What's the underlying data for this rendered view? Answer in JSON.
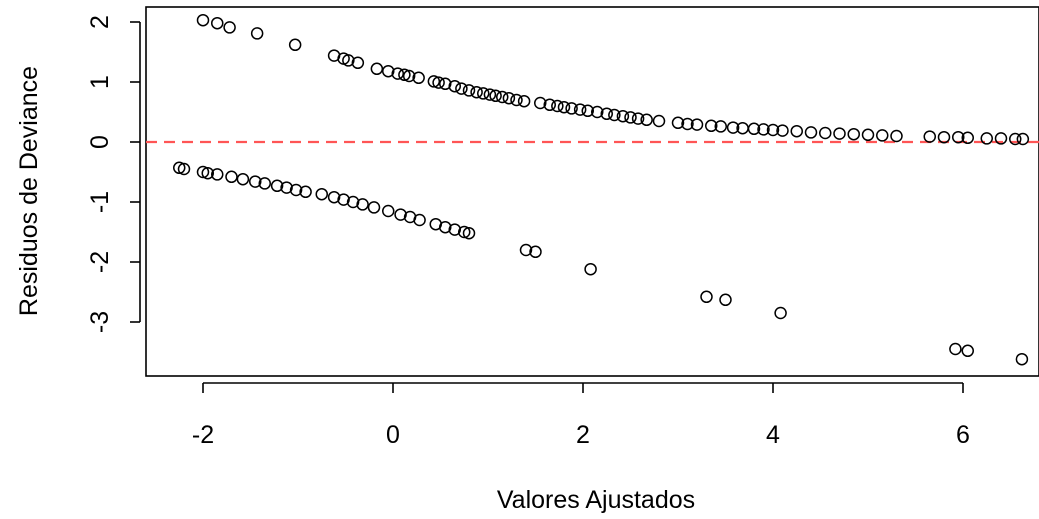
{
  "chart_data": {
    "type": "scatter",
    "title": "",
    "xlabel": "Valores Ajustados",
    "ylabel": "Residuos de Deviance",
    "xlim": [
      -2.6,
      6.8
    ],
    "ylim": [
      -3.9,
      2.25
    ],
    "x_ticks": [
      -2,
      0,
      2,
      4,
      6
    ],
    "y_ticks": [
      -3,
      -2,
      -1,
      0,
      1,
      2
    ],
    "x_tick_labels": [
      "-2",
      "0",
      "2",
      "4",
      "6"
    ],
    "y_tick_labels": [
      "-3",
      "-2",
      "-1",
      "0",
      "1",
      "2"
    ],
    "grid": false,
    "legend": "none",
    "reference_line": {
      "y": 0,
      "style": "dashed",
      "color": "#ff5555"
    },
    "marker": {
      "shape": "open-circle",
      "color": "#000000"
    },
    "series": [
      {
        "points": [
          [
            -2.0,
            2.03
          ],
          [
            -1.85,
            1.98
          ],
          [
            -1.72,
            1.91
          ],
          [
            -1.43,
            1.81
          ],
          [
            -1.03,
            1.62
          ],
          [
            -0.62,
            1.44
          ],
          [
            -0.52,
            1.39
          ],
          [
            -0.47,
            1.36
          ],
          [
            -0.37,
            1.32
          ],
          [
            -0.17,
            1.22
          ],
          [
            -0.05,
            1.18
          ],
          [
            0.05,
            1.14
          ],
          [
            0.12,
            1.12
          ],
          [
            0.17,
            1.1
          ],
          [
            0.27,
            1.07
          ],
          [
            0.43,
            1.01
          ],
          [
            0.48,
            0.99
          ],
          [
            0.55,
            0.97
          ],
          [
            0.65,
            0.93
          ],
          [
            0.72,
            0.89
          ],
          [
            0.8,
            0.86
          ],
          [
            0.88,
            0.83
          ],
          [
            0.95,
            0.81
          ],
          [
            1.02,
            0.79
          ],
          [
            1.08,
            0.77
          ],
          [
            1.15,
            0.75
          ],
          [
            1.22,
            0.73
          ],
          [
            1.3,
            0.7
          ],
          [
            1.38,
            0.68
          ],
          [
            1.55,
            0.65
          ],
          [
            1.65,
            0.62
          ],
          [
            1.73,
            0.6
          ],
          [
            1.8,
            0.58
          ],
          [
            1.88,
            0.56
          ],
          [
            1.97,
            0.54
          ],
          [
            2.05,
            0.52
          ],
          [
            2.15,
            0.5
          ],
          [
            2.25,
            0.47
          ],
          [
            2.33,
            0.45
          ],
          [
            2.42,
            0.43
          ],
          [
            2.5,
            0.41
          ],
          [
            2.58,
            0.39
          ],
          [
            2.67,
            0.37
          ],
          [
            2.8,
            0.35
          ],
          [
            3.0,
            0.32
          ],
          [
            3.1,
            0.3
          ],
          [
            3.2,
            0.29
          ],
          [
            3.35,
            0.27
          ],
          [
            3.45,
            0.26
          ],
          [
            3.58,
            0.24
          ],
          [
            3.68,
            0.23
          ],
          [
            3.8,
            0.22
          ],
          [
            3.9,
            0.21
          ],
          [
            4.0,
            0.2
          ],
          [
            4.1,
            0.19
          ],
          [
            4.25,
            0.18
          ],
          [
            4.4,
            0.16
          ],
          [
            4.55,
            0.15
          ],
          [
            4.7,
            0.14
          ],
          [
            4.85,
            0.13
          ],
          [
            5.0,
            0.12
          ],
          [
            5.15,
            0.11
          ],
          [
            5.3,
            0.1
          ],
          [
            5.65,
            0.09
          ],
          [
            5.8,
            0.08
          ],
          [
            5.95,
            0.08
          ],
          [
            6.05,
            0.07
          ],
          [
            6.25,
            0.06
          ],
          [
            6.4,
            0.06
          ],
          [
            6.55,
            0.05
          ],
          [
            6.63,
            0.05
          ],
          [
            -2.25,
            -0.43
          ],
          [
            -2.2,
            -0.45
          ],
          [
            -2.0,
            -0.5
          ],
          [
            -1.95,
            -0.52
          ],
          [
            -1.85,
            -0.54
          ],
          [
            -1.7,
            -0.58
          ],
          [
            -1.58,
            -0.62
          ],
          [
            -1.45,
            -0.66
          ],
          [
            -1.35,
            -0.69
          ],
          [
            -1.22,
            -0.73
          ],
          [
            -1.12,
            -0.76
          ],
          [
            -1.02,
            -0.8
          ],
          [
            -0.92,
            -0.83
          ],
          [
            -0.75,
            -0.87
          ],
          [
            -0.62,
            -0.92
          ],
          [
            -0.52,
            -0.96
          ],
          [
            -0.42,
            -1.0
          ],
          [
            -0.32,
            -1.04
          ],
          [
            -0.2,
            -1.09
          ],
          [
            -0.05,
            -1.15
          ],
          [
            0.08,
            -1.21
          ],
          [
            0.18,
            -1.25
          ],
          [
            0.28,
            -1.3
          ],
          [
            0.45,
            -1.37
          ],
          [
            0.55,
            -1.42
          ],
          [
            0.65,
            -1.46
          ],
          [
            0.75,
            -1.5
          ],
          [
            0.8,
            -1.52
          ],
          [
            1.4,
            -1.8
          ],
          [
            1.5,
            -1.83
          ],
          [
            2.08,
            -2.12
          ],
          [
            3.3,
            -2.58
          ],
          [
            3.5,
            -2.63
          ],
          [
            4.08,
            -2.85
          ],
          [
            5.92,
            -3.45
          ],
          [
            6.05,
            -3.48
          ],
          [
            6.62,
            -3.62
          ]
        ]
      }
    ]
  }
}
